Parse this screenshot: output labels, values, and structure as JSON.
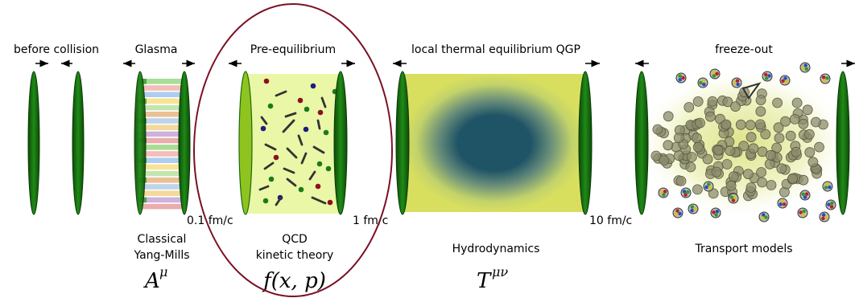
{
  "stages": {
    "before_collision": {
      "title": "before collision"
    },
    "glasma": {
      "title": "Glasma",
      "time": "0.1 fm/c",
      "theory_line1": "Classical",
      "theory_line2": "Yang-Mills",
      "symbol": "A",
      "symbol_sup": "μ"
    },
    "pre_equilibrium": {
      "title": "Pre-equilibrium",
      "time": "1 fm/c",
      "theory_line1": "QCD",
      "theory_line2": "kinetic theory",
      "symbol": "f(x, p)"
    },
    "qgp": {
      "title": "local thermal equilibrium QGP",
      "time": "10 fm/c",
      "theory": "Hydrodynamics",
      "symbol": "T",
      "symbol_sup": "μν"
    },
    "freeze_out": {
      "title": "freeze-out",
      "theory": "Transport models"
    }
  },
  "colors": {
    "nucleus_green": "#1a7a12",
    "nucleus_dark": "#0d4a08",
    "nucleus_light": "#8fc31f",
    "highlight_ellipse": "#7a1024",
    "qgp_core": "#1f5467",
    "qgp_outer": "#d8df5f",
    "pre_eq_fill": "#eaf7a6",
    "hadron_gray": "#8c8c6c"
  }
}
